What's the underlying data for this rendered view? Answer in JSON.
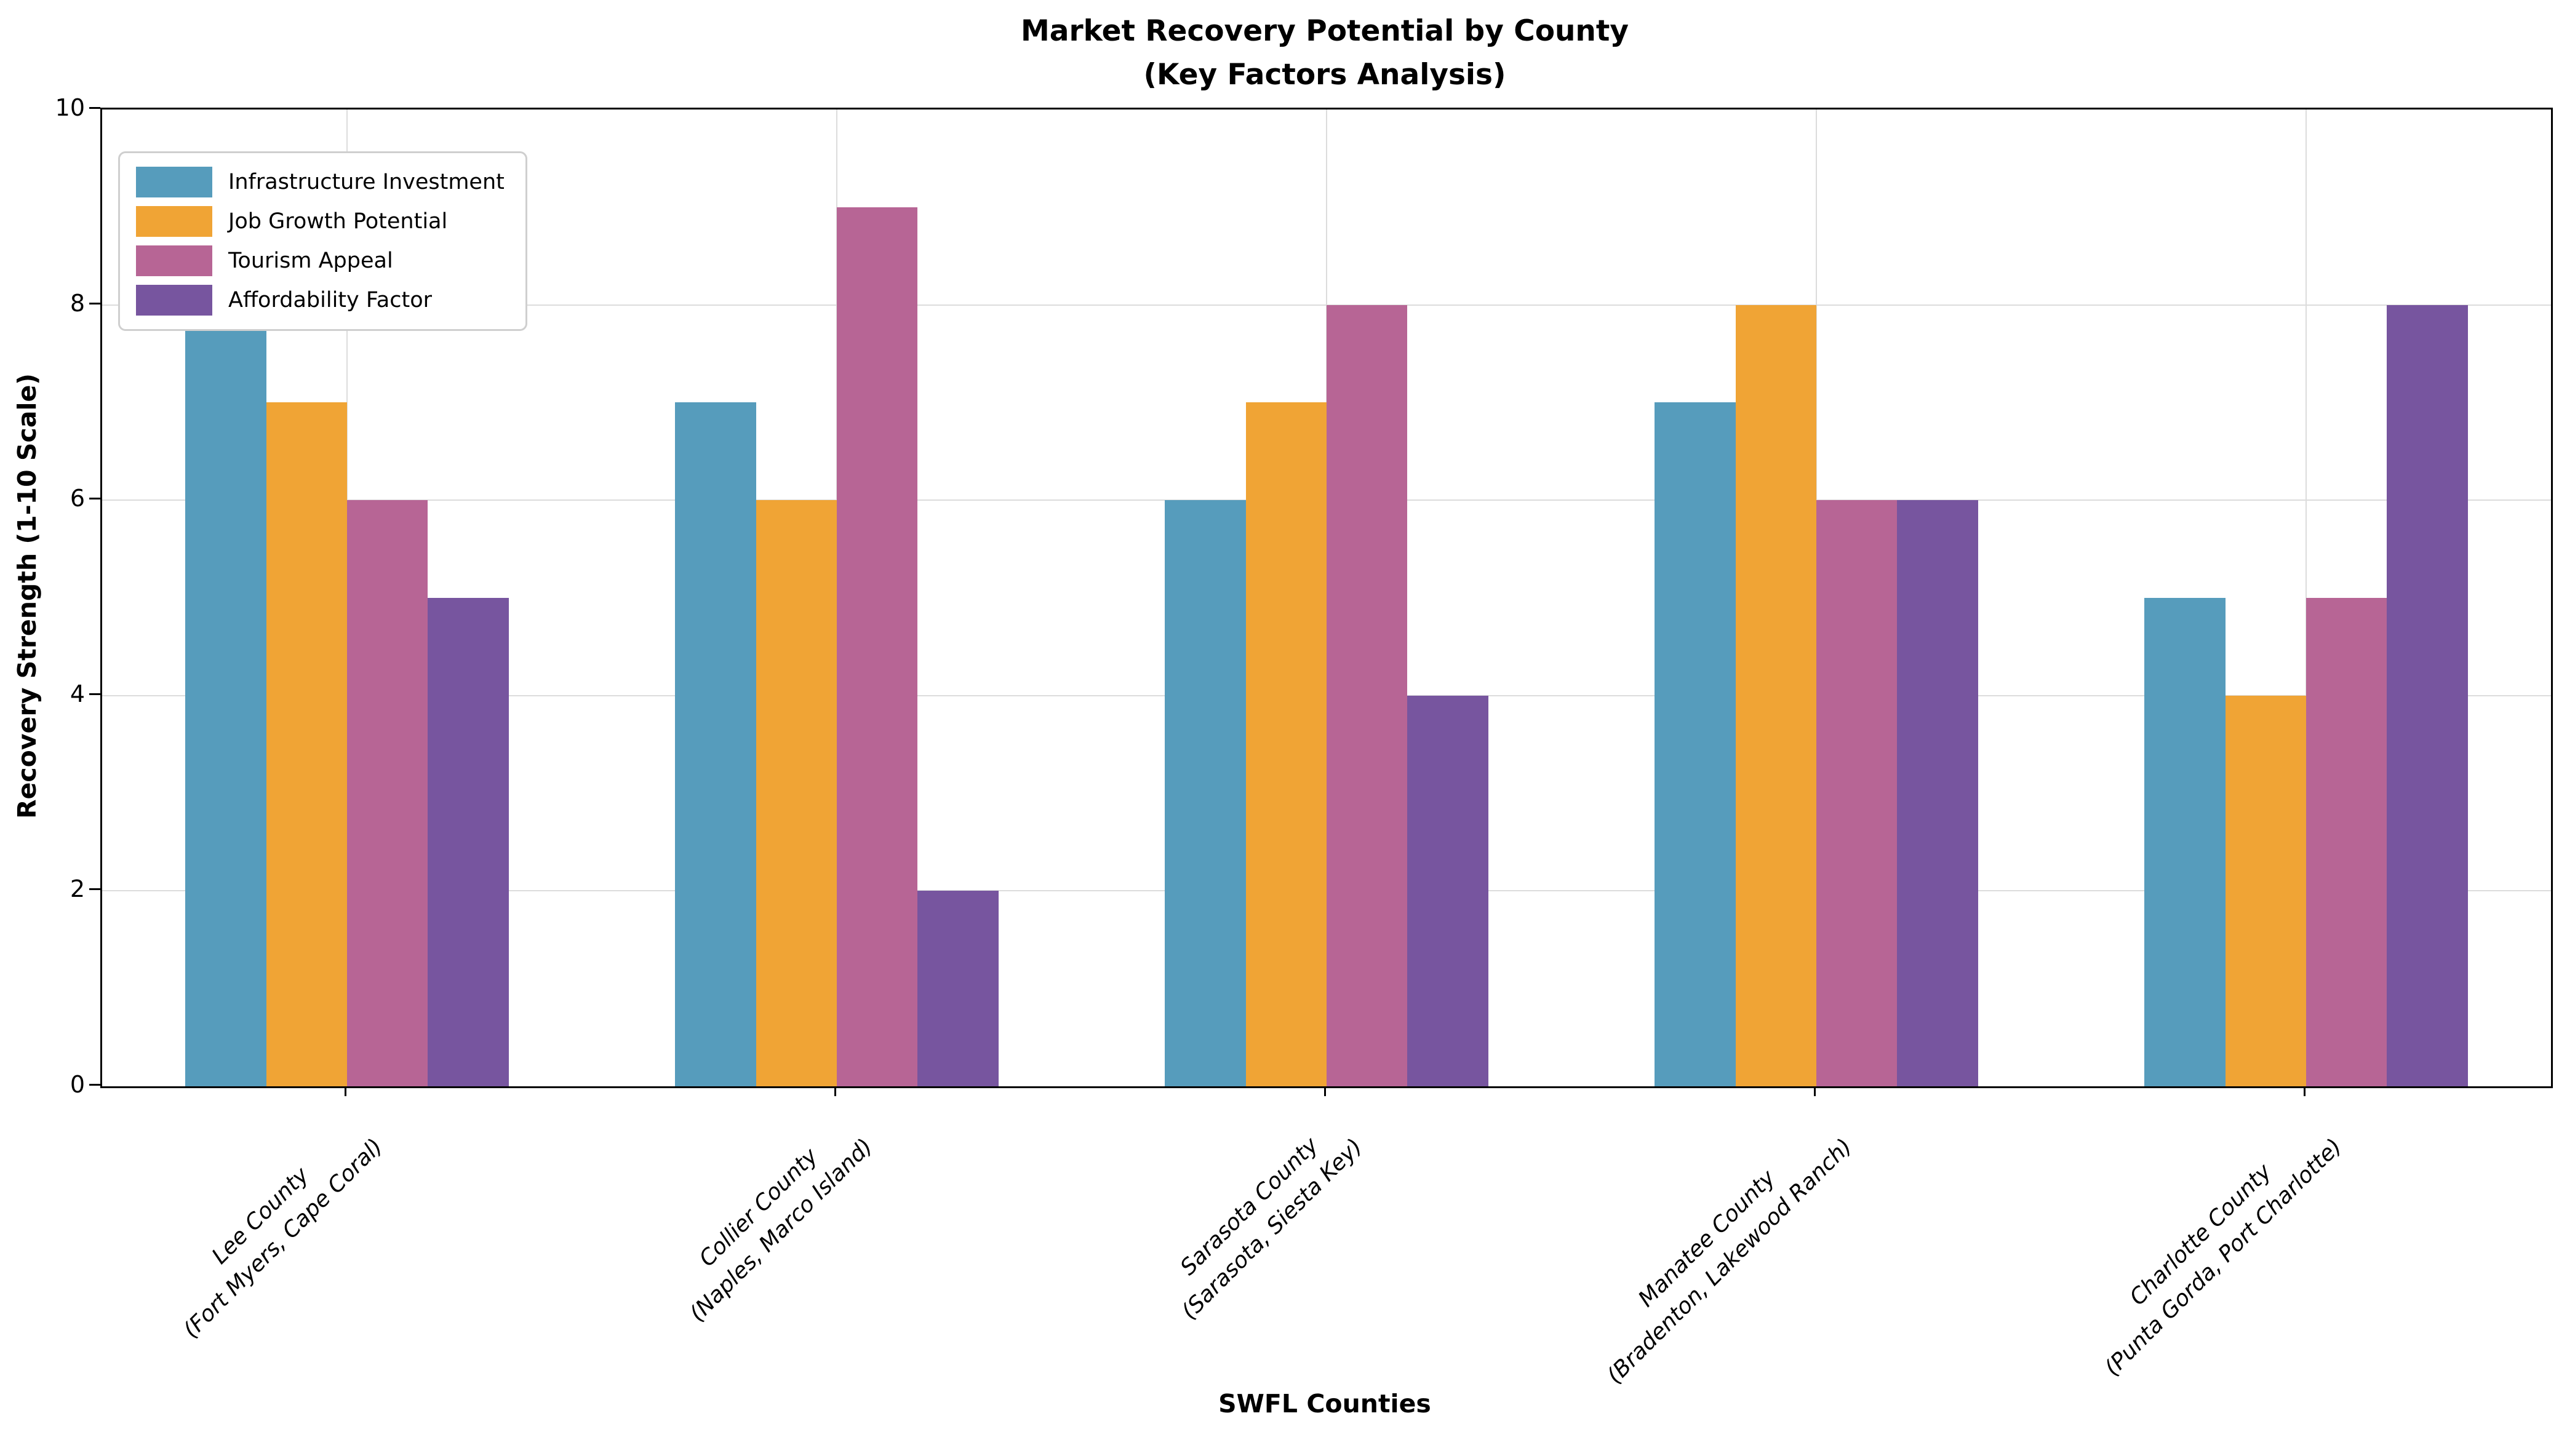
{
  "title": {
    "line1": "Market Recovery Potential by County",
    "line2": "(Key Factors Analysis)"
  },
  "chart_data": {
    "type": "bar",
    "title": "Market Recovery Potential by County (Key Factors Analysis)",
    "xlabel": "SWFL Counties",
    "ylabel": "Recovery Strength (1-10 Scale)",
    "ylim": [
      0,
      10
    ],
    "yticks": [
      0,
      2,
      4,
      6,
      8,
      10
    ],
    "grid": true,
    "legend_position": "upper-left",
    "categories": [
      {
        "label": "Lee County",
        "sublabel": "(Fort Myers, Cape Coral)"
      },
      {
        "label": "Collier County",
        "sublabel": "(Naples, Marco Island)"
      },
      {
        "label": "Sarasota County",
        "sublabel": "(Sarasota, Siesta Key)"
      },
      {
        "label": "Manatee County",
        "sublabel": "(Bradenton, Lakewood Ranch)"
      },
      {
        "label": "Charlotte County",
        "sublabel": "(Punta Gorda, Port Charlotte)"
      }
    ],
    "series": [
      {
        "name": "Infrastructure Investment",
        "color": "#569CBC",
        "values": [
          8,
          7,
          6,
          7,
          5
        ]
      },
      {
        "name": "Job Growth Potential",
        "color": "#F0A435",
        "values": [
          7,
          6,
          7,
          8,
          4
        ]
      },
      {
        "name": "Tourism Appeal",
        "color": "#B76595",
        "values": [
          6,
          9,
          8,
          6,
          5
        ]
      },
      {
        "name": "Affordability Factor",
        "color": "#77559F",
        "values": [
          5,
          2,
          4,
          6,
          8
        ]
      }
    ],
    "colors": {
      "grid": "#dcdcdc",
      "spine": "#000000",
      "legend_border": "#cfcfcf",
      "background": "#ffffff"
    }
  }
}
